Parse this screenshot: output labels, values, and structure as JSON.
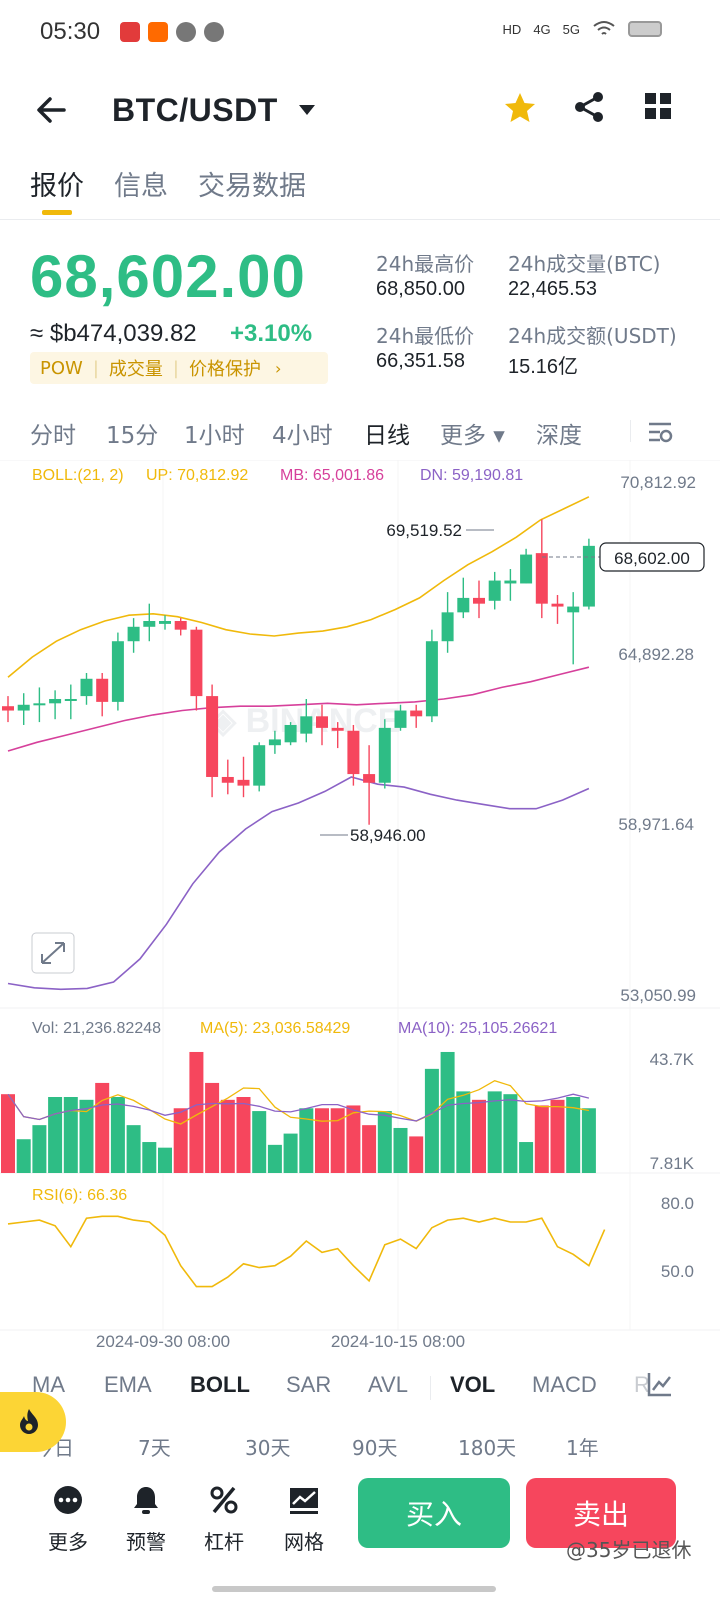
{
  "status_bar": {
    "time": "05:30",
    "indicators": [
      "HD",
      "4G",
      "5G"
    ]
  },
  "header": {
    "pair": "BTC/USDT"
  },
  "tabs": [
    {
      "label": "报价",
      "active": true
    },
    {
      "label": "信息",
      "active": false
    },
    {
      "label": "交易数据",
      "active": false
    }
  ],
  "price": {
    "last": "68,602.00",
    "fiat": "≈ $b474,039.82",
    "change": "+3.10%",
    "tags": [
      "POW",
      "成交量",
      "价格保护"
    ],
    "tag_arrow": "›"
  },
  "stats": {
    "high_label": "24h最高价",
    "high_value": "68,850.00",
    "vol_btc_label": "24h成交量(BTC)",
    "vol_btc_value": "22,465.53",
    "low_label": "24h最低价",
    "low_value": "66,351.58",
    "vol_usdt_label": "24h成交额(USDT)",
    "vol_usdt_value": "15.16亿"
  },
  "intervals": [
    {
      "label": "分时",
      "active": false
    },
    {
      "label": "15分",
      "active": false
    },
    {
      "label": "1小时",
      "active": false
    },
    {
      "label": "4小时",
      "active": false
    },
    {
      "label": "日线",
      "active": true
    },
    {
      "label": "更多 ▾",
      "active": false
    },
    {
      "label": "深度",
      "active": false
    }
  ],
  "chart_data": {
    "type": "candlestick",
    "boll": {
      "legend": "BOLL:(21, 2)",
      "up_label": "UP: 70,812.92",
      "mb_label": "MB: 65,001.86",
      "dn_label": "DN: 59,190.81"
    },
    "axis_labels": [
      "70,812.92",
      "64,892.28",
      "58,971.64",
      "53,050.99"
    ],
    "ylim": [
      53050.99,
      70812.92
    ],
    "last_price_label": "68,602.00",
    "high_marker": "69,519.52",
    "low_marker": "58,946.00",
    "candles": [
      {
        "o": 63050,
        "h": 63400,
        "c": 62900,
        "l": 62500
      },
      {
        "o": 62900,
        "h": 63500,
        "c": 63100,
        "l": 62400
      },
      {
        "o": 63100,
        "h": 63700,
        "c": 63150,
        "l": 62500
      },
      {
        "o": 63150,
        "h": 63600,
        "c": 63300,
        "l": 62600
      },
      {
        "o": 63300,
        "h": 63800,
        "c": 63300,
        "l": 62600
      },
      {
        "o": 63400,
        "h": 64200,
        "c": 64000,
        "l": 63100
      },
      {
        "o": 64000,
        "h": 64200,
        "c": 63200,
        "l": 62700
      },
      {
        "o": 63200,
        "h": 65600,
        "c": 65300,
        "l": 62900
      },
      {
        "o": 65300,
        "h": 66100,
        "c": 65800,
        "l": 64900
      },
      {
        "o": 65800,
        "h": 66600,
        "c": 66000,
        "l": 65300
      },
      {
        "o": 65900,
        "h": 66200,
        "c": 66000,
        "l": 65700
      },
      {
        "o": 66000,
        "h": 66100,
        "c": 65700,
        "l": 65500
      },
      {
        "o": 65700,
        "h": 65800,
        "c": 63400,
        "l": 62900
      },
      {
        "o": 63400,
        "h": 63800,
        "c": 60600,
        "l": 59900
      },
      {
        "o": 60600,
        "h": 61200,
        "c": 60400,
        "l": 60000
      },
      {
        "o": 60500,
        "h": 61300,
        "c": 60300,
        "l": 59900
      },
      {
        "o": 60300,
        "h": 61800,
        "c": 61700,
        "l": 60100
      },
      {
        "o": 61700,
        "h": 62200,
        "c": 61900,
        "l": 61400
      },
      {
        "o": 61800,
        "h": 62500,
        "c": 62400,
        "l": 61700
      },
      {
        "o": 62100,
        "h": 63300,
        "c": 62700,
        "l": 61800
      },
      {
        "o": 62700,
        "h": 63100,
        "c": 62300,
        "l": 61700
      },
      {
        "o": 62300,
        "h": 62500,
        "c": 62200,
        "l": 61600
      },
      {
        "o": 62200,
        "h": 62400,
        "c": 60700,
        "l": 60300
      },
      {
        "o": 60700,
        "h": 61700,
        "c": 60400,
        "l": 58946
      },
      {
        "o": 60400,
        "h": 62600,
        "c": 62300,
        "l": 60200
      },
      {
        "o": 62300,
        "h": 63100,
        "c": 62900,
        "l": 62200
      },
      {
        "o": 62900,
        "h": 63100,
        "c": 62700,
        "l": 62300
      },
      {
        "o": 62700,
        "h": 65700,
        "c": 65300,
        "l": 62500
      },
      {
        "o": 65300,
        "h": 67000,
        "c": 66300,
        "l": 64900
      },
      {
        "o": 66300,
        "h": 67500,
        "c": 66800,
        "l": 66100
      },
      {
        "o": 66800,
        "h": 67400,
        "c": 66600,
        "l": 66100
      },
      {
        "o": 66700,
        "h": 67700,
        "c": 67400,
        "l": 66400
      },
      {
        "o": 67300,
        "h": 67800,
        "c": 67400,
        "l": 66700
      },
      {
        "o": 67300,
        "h": 68500,
        "c": 68300,
        "l": 67300
      },
      {
        "o": 68350,
        "h": 69519.52,
        "c": 66600,
        "l": 66100
      },
      {
        "o": 66600,
        "h": 66900,
        "c": 66500,
        "l": 65900
      },
      {
        "o": 66300,
        "h": 67000,
        "c": 66500,
        "l": 64500
      },
      {
        "o": 66500,
        "h": 68850,
        "c": 68602,
        "l": 66400
      }
    ],
    "boll_up": [
      64050,
      64750,
      65300,
      65700,
      66000,
      66200,
      66250,
      66150,
      65950,
      65700,
      65550,
      65480,
      65580,
      65650,
      65800,
      66050,
      66400,
      66800,
      67400,
      67950,
      68400,
      68900,
      69500,
      69900,
      70300
    ],
    "boll_mb": [
      61500,
      61800,
      62050,
      62300,
      62550,
      62750,
      62900,
      63000,
      63050,
      63050,
      63100,
      63150,
      63100,
      63150,
      63200,
      63300,
      63450,
      63700,
      63900,
      64150,
      64400
    ],
    "boll_dn": [
      53450,
      53300,
      53250,
      53280,
      53500,
      54300,
      55500,
      56900,
      58000,
      58800,
      59400,
      59700,
      60100,
      60600,
      60350,
      60250,
      60000,
      59800,
      59650,
      59500,
      59500,
      59800,
      60200
    ],
    "volume": {
      "legend_vol": "Vol: 21,236.82248",
      "legend_ma5": "MA(5): 23,036.58429",
      "legend_ma10": "MA(10): 25,105.26621",
      "axis_max": "43.7K",
      "axis_min": "7.81K",
      "bars": [
        28,
        12,
        17,
        27,
        27,
        26,
        32,
        27,
        17,
        11,
        9,
        23,
        43,
        32,
        26,
        27,
        22,
        10,
        14,
        23,
        23,
        23,
        24,
        17,
        22,
        16,
        13,
        37,
        43,
        29,
        26,
        29,
        28,
        11,
        24,
        26,
        27,
        23
      ]
    },
    "rsi": {
      "legend": "RSI(6): 66.36",
      "axis_top": "80.0",
      "axis_mid": "50.0",
      "values": [
        69,
        70,
        71,
        68,
        57,
        72,
        73,
        73,
        71,
        70,
        63,
        47,
        36,
        36,
        41,
        48,
        46,
        47,
        52,
        60,
        54,
        56,
        47,
        39,
        58,
        61,
        56,
        67,
        71,
        72,
        70,
        72,
        70,
        70,
        72,
        57,
        53,
        47,
        66
      ]
    },
    "x_labels": [
      "2024-09-30 08:00",
      "2024-10-15 08:00"
    ]
  },
  "indicators": {
    "main": [
      {
        "label": "MA",
        "active": false
      },
      {
        "label": "EMA",
        "active": false
      },
      {
        "label": "BOLL",
        "active": true
      },
      {
        "label": "SAR",
        "active": false
      },
      {
        "label": "AVL",
        "active": false
      }
    ],
    "sub": [
      {
        "label": "VOL",
        "active": true
      },
      {
        "label": "MACD",
        "active": false
      },
      {
        "label": "R",
        "active": false
      }
    ]
  },
  "periods": [
    "今日",
    "7天",
    "30天",
    "90天",
    "180天",
    "1年"
  ],
  "bottom_bar": {
    "items": [
      "更多",
      "预警",
      "杠杆",
      "网格"
    ],
    "buy_label": "买入",
    "sell_label": "卖出",
    "watermark": "@35岁已退休"
  },
  "colors": {
    "up": "#2ebd85",
    "down": "#f6465d",
    "accent": "#f0b90b",
    "boll_up": "#f0b90b",
    "boll_mb": "#d6409b",
    "boll_dn": "#8b62c6"
  }
}
